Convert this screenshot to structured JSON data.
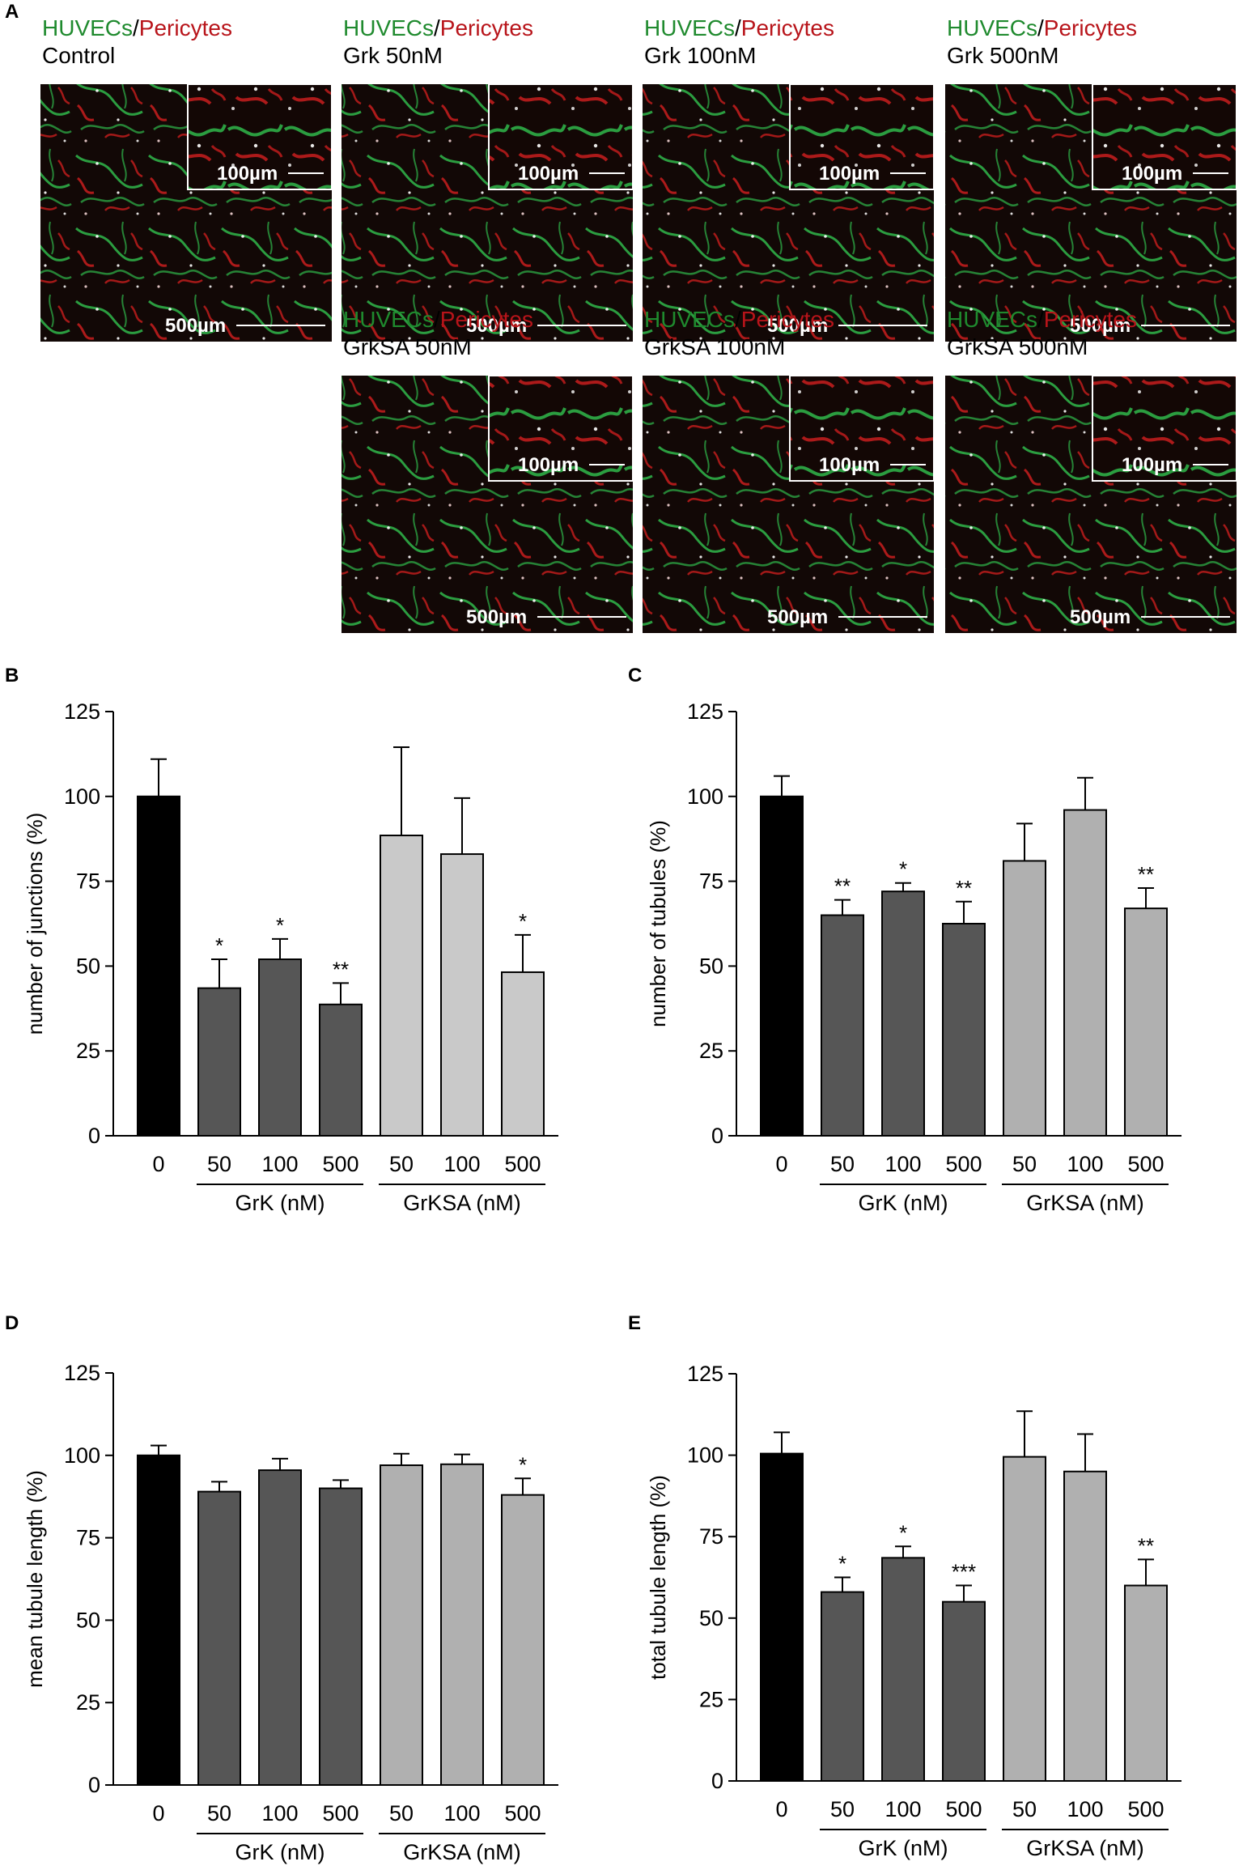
{
  "panels": {
    "A": "A",
    "B": "B",
    "C": "C",
    "D": "D",
    "E": "E"
  },
  "micrographs": [
    {
      "green": "HUVECs",
      "slash": "/",
      "red": "Pericytes",
      "condition": "Control",
      "inset_scale": "100µm",
      "scale": "500µm"
    },
    {
      "green": "HUVECs",
      "slash": "/",
      "red": "Pericytes",
      "condition": "Grk 50nM",
      "inset_scale": "100µm",
      "scale": "500µm"
    },
    {
      "green": "HUVECs",
      "slash": "/",
      "red": "Pericytes",
      "condition": "Grk 100nM",
      "inset_scale": "100µm",
      "scale": "500µm"
    },
    {
      "green": "HUVECs",
      "slash": "/",
      "red": "Pericytes",
      "condition": "Grk 500nM",
      "inset_scale": "100µm",
      "scale": "500µm"
    },
    {
      "green": "HUVECs",
      "slash": "/",
      "red": "Pericytes",
      "condition": "GrkSA 50nM",
      "inset_scale": "100µm",
      "scale": "500µm"
    },
    {
      "green": "HUVECs",
      "slash": "/",
      "red": "Pericytes",
      "condition": "GrkSA 100nM",
      "inset_scale": "100µm",
      "scale": "500µm"
    },
    {
      "green": "HUVECs",
      "slash": "/",
      "red": "Pericytes",
      "condition": "GrkSA 500nM",
      "inset_scale": "100µm",
      "scale": "500µm"
    }
  ],
  "colors": {
    "control": "#000000",
    "grk": "#565656",
    "grksa_b": "#c9c9c9",
    "grksa_cde": "#b0b0b0",
    "huvec_green": "#1f8a2e",
    "pericyte_red": "#b8141a"
  },
  "chart_data": [
    {
      "panel": "B",
      "type": "bar",
      "categories": [
        "0",
        "50",
        "100",
        "500",
        "50",
        "100",
        "500"
      ],
      "values": [
        100,
        43.5,
        52,
        38.7,
        88.5,
        83,
        48.2
      ],
      "errors": [
        11,
        8.5,
        6,
        6.3,
        26,
        16.5,
        11
      ],
      "stars": [
        "",
        "*",
        "*",
        "**",
        "",
        "",
        "*"
      ],
      "groups": [
        "GrK (nM)",
        "GrKSA (nM)"
      ],
      "ylabel": "number of junctions (%)",
      "yticks": [
        0,
        25,
        50,
        75,
        100,
        125
      ],
      "ylim": [
        0,
        125
      ]
    },
    {
      "panel": "C",
      "type": "bar",
      "categories": [
        "0",
        "50",
        "100",
        "500",
        "50",
        "100",
        "500"
      ],
      "values": [
        100,
        65,
        72,
        62.5,
        81,
        96,
        67
      ],
      "errors": [
        6,
        4.5,
        2.5,
        6.5,
        11,
        9.5,
        6
      ],
      "stars": [
        "",
        "**",
        "*",
        "**",
        "",
        "",
        "**"
      ],
      "groups": [
        "GrK (nM)",
        "GrKSA (nM)"
      ],
      "ylabel": "number of tubules (%)",
      "yticks": [
        0,
        25,
        50,
        75,
        100,
        125
      ],
      "ylim": [
        0,
        125
      ]
    },
    {
      "panel": "D",
      "type": "bar",
      "categories": [
        "0",
        "50",
        "100",
        "500",
        "50",
        "100",
        "500"
      ],
      "values": [
        100,
        89,
        95.5,
        90,
        97,
        97.3,
        88
      ],
      "errors": [
        3,
        3,
        3.5,
        2.5,
        3.5,
        3,
        5
      ],
      "stars": [
        "",
        "",
        "",
        "",
        "",
        "",
        "*"
      ],
      "groups": [
        "GrK (nM)",
        "GrKSA (nM)"
      ],
      "ylabel": "mean tubule length (%)",
      "yticks": [
        0,
        25,
        50,
        75,
        100,
        125
      ],
      "ylim": [
        0,
        125
      ]
    },
    {
      "panel": "E",
      "type": "bar",
      "categories": [
        "0",
        "50",
        "100",
        "500",
        "50",
        "100",
        "500"
      ],
      "values": [
        100.5,
        58,
        68.5,
        55,
        99.5,
        95,
        60
      ],
      "errors": [
        6.5,
        4.5,
        3.5,
        5,
        14,
        11.5,
        8
      ],
      "stars": [
        "",
        "*",
        "*",
        "***",
        "",
        "",
        "**"
      ],
      "groups": [
        "GrK (nM)",
        "GrKSA (nM)"
      ],
      "ylabel": "total tubule length (%)",
      "yticks": [
        0,
        25,
        50,
        75,
        100,
        125
      ],
      "ylim": [
        0,
        125
      ]
    }
  ]
}
